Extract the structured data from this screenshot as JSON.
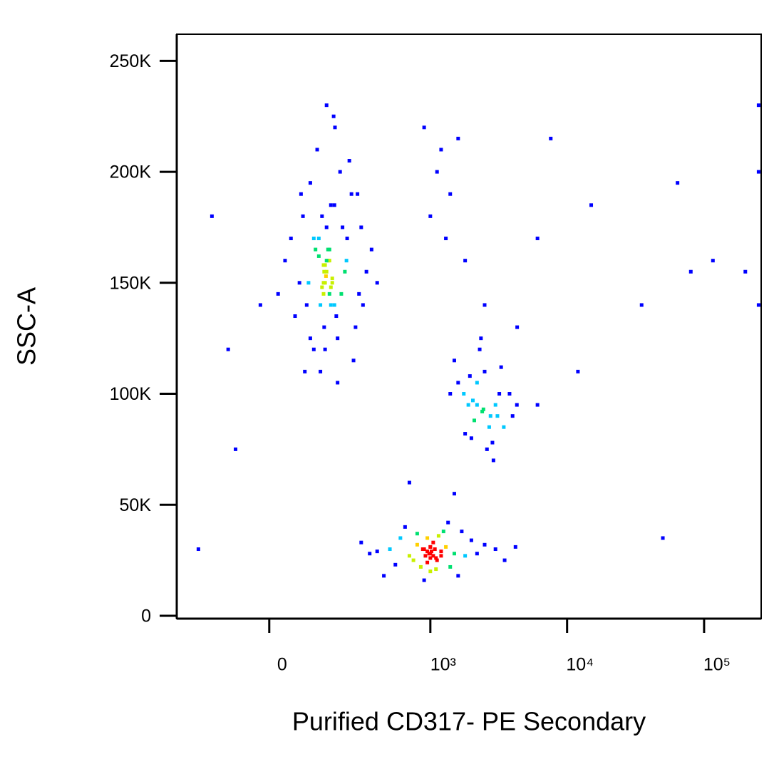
{
  "chart_data": {
    "type": "scatter",
    "x_label": "Purified CD317- PE Secondary",
    "y_label": "SSC-A",
    "x_scale": "biexponential",
    "xlim": [
      -303,
      261000
    ],
    "xticks": [
      0,
      {
        "value": 1000,
        "label": "10³"
      },
      {
        "value": 10000,
        "label": "10⁴"
      },
      {
        "value": 100000,
        "label": "10⁵"
      }
    ],
    "ylim": [
      -1300,
      262000
    ],
    "yticks": [
      0,
      {
        "value": 50000,
        "label": "50K"
      },
      {
        "value": 100000,
        "label": "100K"
      },
      {
        "value": 150000,
        "label": "150K"
      },
      {
        "value": 200000,
        "label": "200K"
      },
      {
        "value": 250000,
        "label": "250K"
      }
    ],
    "colormap": [
      "#0000ff",
      "#00c8ff",
      "#00e070",
      "#c8f000",
      "#ffd000",
      "#ff0000"
    ],
    "x": [
      142,
      110,
      178,
      227,
      71,
      288,
      142,
      178,
      110,
      200,
      36,
      362,
      150,
      90,
      250,
      130,
      170,
      60,
      300,
      120,
      160,
      140,
      190,
      80,
      220,
      100,
      270,
      50,
      180,
      155,
      130,
      210,
      95,
      330,
      145,
      165,
      20,
      240,
      115,
      185,
      140,
      160,
      125,
      205,
      75,
      260,
      175,
      135,
      310,
      150,
      400,
      -20,
      190,
      100,
      230,
      145,
      85,
      280,
      165,
      125,
      150,
      170,
      140,
      160,
      145,
      155,
      135,
      165,
      150,
      148,
      2200,
      2760,
      1760,
      3450,
      2500,
      2000,
      3000,
      1600,
      4000,
      2300,
      2600,
      1900,
      3200,
      2100,
      2900,
      1500,
      3800,
      2400,
      2700,
      2200,
      1800,
      3300,
      2050,
      2450,
      4300,
      1400,
      2850,
      2350,
      3100,
      1950,
      1000,
      900,
      1100,
      800,
      1200,
      700,
      950,
      1050,
      1300,
      600,
      850,
      1500,
      500,
      1000,
      1150,
      750,
      2000,
      400,
      1800,
      1250,
      950,
      1050,
      1000,
      880,
      1120,
      650,
      2500,
      350,
      3000,
      1400,
      980,
      1020,
      920,
      1080,
      1000,
      550,
      1700,
      300,
      3500,
      1600,
      1000,
      950,
      1100,
      800,
      2200,
      450,
      1350,
      900,
      1200,
      4200,
      1120,
      900,
      1400,
      1300,
      700,
      1600,
      1000,
      1200,
      1800,
      2500,
      6080,
      7600,
      15000,
      35000,
      64000,
      116000,
      200000,
      250000,
      250000,
      250000,
      -150,
      -100,
      -200,
      1500,
      4320,
      6080,
      50000,
      80000,
      12000,
      -80
    ],
    "values": [
      155000,
      170000,
      140000,
      160000,
      150000,
      145000,
      130000,
      185000,
      120000,
      200000,
      160000,
      165000,
      175000,
      140000,
      190000,
      110000,
      150000,
      135000,
      175000,
      210000,
      165000,
      145000,
      125000,
      180000,
      155000,
      195000,
      130000,
      170000,
      220000,
      160000,
      140000,
      175000,
      150000,
      155000,
      120000,
      185000,
      145000,
      205000,
      165000,
      135000,
      150000,
      160000,
      170000,
      145000,
      190000,
      115000,
      225000,
      180000,
      140000,
      230000,
      150000,
      140000,
      105000,
      125000,
      170000,
      158000,
      110000,
      190000,
      148000,
      162000,
      155000,
      152000,
      158000,
      145000,
      150000,
      165000,
      148000,
      140000,
      160000,
      153000,
      95000,
      90000,
      100000,
      85000,
      110000,
      80000,
      95000,
      105000,
      90000,
      120000,
      75000,
      95000,
      100000,
      88000,
      70000,
      115000,
      100000,
      92000,
      85000,
      105000,
      82000,
      112000,
      97000,
      93000,
      95000,
      100000,
      78000,
      125000,
      90000,
      108000,
      28000,
      30000,
      26000,
      32000,
      29000,
      27000,
      24000,
      33000,
      31000,
      35000,
      22000,
      28000,
      30000,
      20000,
      36000,
      25000,
      34000,
      29000,
      27000,
      38000,
      29000,
      27000,
      31000,
      30000,
      25000,
      40000,
      32000,
      28000,
      30000,
      22000,
      28000,
      29000,
      27000,
      30000,
      26000,
      23000,
      38000,
      33000,
      25000,
      18000,
      31000,
      35000,
      21000,
      37000,
      28000,
      18000,
      42000,
      16000,
      27000,
      31000,
      200000,
      220000,
      190000,
      170000,
      60000,
      215000,
      180000,
      210000,
      160000,
      140000,
      170000,
      215000,
      185000,
      140000,
      195000,
      160000,
      155000,
      200000,
      140000,
      230000,
      180000,
      120000,
      30000,
      55000,
      130000,
      95000,
      35000,
      155000,
      110000,
      75000
    ]
  }
}
